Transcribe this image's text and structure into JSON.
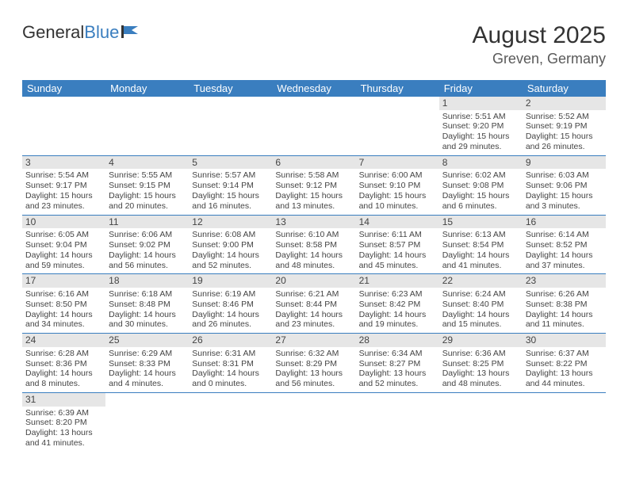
{
  "logo": {
    "part1": "General",
    "part2": "Blue"
  },
  "title": "August 2025",
  "location": "Greven, Germany",
  "colors": {
    "header_bg": "#3a7ebf",
    "daynum_bg": "#e6e6e6",
    "text": "#444444",
    "title": "#333333",
    "subtitle": "#595959"
  },
  "day_headers": [
    "Sunday",
    "Monday",
    "Tuesday",
    "Wednesday",
    "Thursday",
    "Friday",
    "Saturday"
  ],
  "weeks": [
    [
      null,
      null,
      null,
      null,
      null,
      {
        "n": "1",
        "sr": "Sunrise: 5:51 AM",
        "ss": "Sunset: 9:20 PM",
        "d1": "Daylight: 15 hours",
        "d2": "and 29 minutes."
      },
      {
        "n": "2",
        "sr": "Sunrise: 5:52 AM",
        "ss": "Sunset: 9:19 PM",
        "d1": "Daylight: 15 hours",
        "d2": "and 26 minutes."
      }
    ],
    [
      {
        "n": "3",
        "sr": "Sunrise: 5:54 AM",
        "ss": "Sunset: 9:17 PM",
        "d1": "Daylight: 15 hours",
        "d2": "and 23 minutes."
      },
      {
        "n": "4",
        "sr": "Sunrise: 5:55 AM",
        "ss": "Sunset: 9:15 PM",
        "d1": "Daylight: 15 hours",
        "d2": "and 20 minutes."
      },
      {
        "n": "5",
        "sr": "Sunrise: 5:57 AM",
        "ss": "Sunset: 9:14 PM",
        "d1": "Daylight: 15 hours",
        "d2": "and 16 minutes."
      },
      {
        "n": "6",
        "sr": "Sunrise: 5:58 AM",
        "ss": "Sunset: 9:12 PM",
        "d1": "Daylight: 15 hours",
        "d2": "and 13 minutes."
      },
      {
        "n": "7",
        "sr": "Sunrise: 6:00 AM",
        "ss": "Sunset: 9:10 PM",
        "d1": "Daylight: 15 hours",
        "d2": "and 10 minutes."
      },
      {
        "n": "8",
        "sr": "Sunrise: 6:02 AM",
        "ss": "Sunset: 9:08 PM",
        "d1": "Daylight: 15 hours",
        "d2": "and 6 minutes."
      },
      {
        "n": "9",
        "sr": "Sunrise: 6:03 AM",
        "ss": "Sunset: 9:06 PM",
        "d1": "Daylight: 15 hours",
        "d2": "and 3 minutes."
      }
    ],
    [
      {
        "n": "10",
        "sr": "Sunrise: 6:05 AM",
        "ss": "Sunset: 9:04 PM",
        "d1": "Daylight: 14 hours",
        "d2": "and 59 minutes."
      },
      {
        "n": "11",
        "sr": "Sunrise: 6:06 AM",
        "ss": "Sunset: 9:02 PM",
        "d1": "Daylight: 14 hours",
        "d2": "and 56 minutes."
      },
      {
        "n": "12",
        "sr": "Sunrise: 6:08 AM",
        "ss": "Sunset: 9:00 PM",
        "d1": "Daylight: 14 hours",
        "d2": "and 52 minutes."
      },
      {
        "n": "13",
        "sr": "Sunrise: 6:10 AM",
        "ss": "Sunset: 8:58 PM",
        "d1": "Daylight: 14 hours",
        "d2": "and 48 minutes."
      },
      {
        "n": "14",
        "sr": "Sunrise: 6:11 AM",
        "ss": "Sunset: 8:57 PM",
        "d1": "Daylight: 14 hours",
        "d2": "and 45 minutes."
      },
      {
        "n": "15",
        "sr": "Sunrise: 6:13 AM",
        "ss": "Sunset: 8:54 PM",
        "d1": "Daylight: 14 hours",
        "d2": "and 41 minutes."
      },
      {
        "n": "16",
        "sr": "Sunrise: 6:14 AM",
        "ss": "Sunset: 8:52 PM",
        "d1": "Daylight: 14 hours",
        "d2": "and 37 minutes."
      }
    ],
    [
      {
        "n": "17",
        "sr": "Sunrise: 6:16 AM",
        "ss": "Sunset: 8:50 PM",
        "d1": "Daylight: 14 hours",
        "d2": "and 34 minutes."
      },
      {
        "n": "18",
        "sr": "Sunrise: 6:18 AM",
        "ss": "Sunset: 8:48 PM",
        "d1": "Daylight: 14 hours",
        "d2": "and 30 minutes."
      },
      {
        "n": "19",
        "sr": "Sunrise: 6:19 AM",
        "ss": "Sunset: 8:46 PM",
        "d1": "Daylight: 14 hours",
        "d2": "and 26 minutes."
      },
      {
        "n": "20",
        "sr": "Sunrise: 6:21 AM",
        "ss": "Sunset: 8:44 PM",
        "d1": "Daylight: 14 hours",
        "d2": "and 23 minutes."
      },
      {
        "n": "21",
        "sr": "Sunrise: 6:23 AM",
        "ss": "Sunset: 8:42 PM",
        "d1": "Daylight: 14 hours",
        "d2": "and 19 minutes."
      },
      {
        "n": "22",
        "sr": "Sunrise: 6:24 AM",
        "ss": "Sunset: 8:40 PM",
        "d1": "Daylight: 14 hours",
        "d2": "and 15 minutes."
      },
      {
        "n": "23",
        "sr": "Sunrise: 6:26 AM",
        "ss": "Sunset: 8:38 PM",
        "d1": "Daylight: 14 hours",
        "d2": "and 11 minutes."
      }
    ],
    [
      {
        "n": "24",
        "sr": "Sunrise: 6:28 AM",
        "ss": "Sunset: 8:36 PM",
        "d1": "Daylight: 14 hours",
        "d2": "and 8 minutes."
      },
      {
        "n": "25",
        "sr": "Sunrise: 6:29 AM",
        "ss": "Sunset: 8:33 PM",
        "d1": "Daylight: 14 hours",
        "d2": "and 4 minutes."
      },
      {
        "n": "26",
        "sr": "Sunrise: 6:31 AM",
        "ss": "Sunset: 8:31 PM",
        "d1": "Daylight: 14 hours",
        "d2": "and 0 minutes."
      },
      {
        "n": "27",
        "sr": "Sunrise: 6:32 AM",
        "ss": "Sunset: 8:29 PM",
        "d1": "Daylight: 13 hours",
        "d2": "and 56 minutes."
      },
      {
        "n": "28",
        "sr": "Sunrise: 6:34 AM",
        "ss": "Sunset: 8:27 PM",
        "d1": "Daylight: 13 hours",
        "d2": "and 52 minutes."
      },
      {
        "n": "29",
        "sr": "Sunrise: 6:36 AM",
        "ss": "Sunset: 8:25 PM",
        "d1": "Daylight: 13 hours",
        "d2": "and 48 minutes."
      },
      {
        "n": "30",
        "sr": "Sunrise: 6:37 AM",
        "ss": "Sunset: 8:22 PM",
        "d1": "Daylight: 13 hours",
        "d2": "and 44 minutes."
      }
    ],
    [
      {
        "n": "31",
        "sr": "Sunrise: 6:39 AM",
        "ss": "Sunset: 8:20 PM",
        "d1": "Daylight: 13 hours",
        "d2": "and 41 minutes."
      },
      null,
      null,
      null,
      null,
      null,
      null
    ]
  ]
}
